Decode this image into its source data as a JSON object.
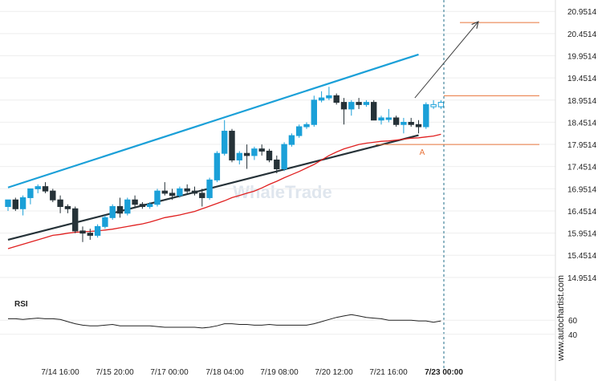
{
  "chart_data": {
    "type": "candlestick",
    "watermark": "WhaleTrade",
    "credit": "www.autochartist.com",
    "y_ticks": [
      "20.9514",
      "20.4514",
      "19.9514",
      "19.4514",
      "18.9514",
      "18.4514",
      "17.9514",
      "17.4514",
      "16.9514",
      "16.4514",
      "15.9514",
      "15.4514",
      "14.9514"
    ],
    "ylim": [
      14.75,
      21.1
    ],
    "x_ticks": [
      "7/14 16:00",
      "7/15 20:00",
      "7/17 00:00",
      "7/18 04:00",
      "7/19 08:00",
      "7/20 12:00",
      "7/21 16:00",
      "7/23 00:00"
    ],
    "candles": [
      [
        16.55,
        16.7,
        16.45,
        16.7
      ],
      [
        16.7,
        16.75,
        16.45,
        16.5
      ],
      [
        16.5,
        16.8,
        16.35,
        16.75
      ],
      [
        16.75,
        16.95,
        16.6,
        16.95
      ],
      [
        16.95,
        17.05,
        16.85,
        17.0
      ],
      [
        17.0,
        17.1,
        16.85,
        16.9
      ],
      [
        16.9,
        16.95,
        16.65,
        16.7
      ],
      [
        16.7,
        16.8,
        16.4,
        16.55
      ],
      [
        16.55,
        16.6,
        16.4,
        16.5
      ],
      [
        16.5,
        16.55,
        15.95,
        16.0
      ],
      [
        16.0,
        16.1,
        15.75,
        15.95
      ],
      [
        15.95,
        16.05,
        15.8,
        15.9
      ],
      [
        15.9,
        16.15,
        15.85,
        16.1
      ],
      [
        16.1,
        16.35,
        16.05,
        16.3
      ],
      [
        16.3,
        16.6,
        16.25,
        16.55
      ],
      [
        16.55,
        16.75,
        16.3,
        16.4
      ],
      [
        16.4,
        16.75,
        16.35,
        16.7
      ],
      [
        16.7,
        16.8,
        16.55,
        16.6
      ],
      [
        16.6,
        16.65,
        16.5,
        16.55
      ],
      [
        16.55,
        16.65,
        16.5,
        16.6
      ],
      [
        16.6,
        16.95,
        16.55,
        16.9
      ],
      [
        16.9,
        17.1,
        16.8,
        16.85
      ],
      [
        16.85,
        16.95,
        16.7,
        16.8
      ],
      [
        16.8,
        17.0,
        16.75,
        16.95
      ],
      [
        16.95,
        17.05,
        16.85,
        16.9
      ],
      [
        16.9,
        17.0,
        16.8,
        16.85
      ],
      [
        16.85,
        16.95,
        16.55,
        16.75
      ],
      [
        16.75,
        17.2,
        16.7,
        17.15
      ],
      [
        17.15,
        17.8,
        17.1,
        17.75
      ],
      [
        17.75,
        18.5,
        17.7,
        18.25
      ],
      [
        18.25,
        18.3,
        17.55,
        17.6
      ],
      [
        17.6,
        17.8,
        17.5,
        17.75
      ],
      [
        17.75,
        17.95,
        17.4,
        17.7
      ],
      [
        17.7,
        17.9,
        17.6,
        17.85
      ],
      [
        17.85,
        17.95,
        17.7,
        17.8
      ],
      [
        17.8,
        17.85,
        17.55,
        17.6
      ],
      [
        17.6,
        17.7,
        17.3,
        17.4
      ],
      [
        17.4,
        18.0,
        17.35,
        17.95
      ],
      [
        17.95,
        18.2,
        17.9,
        18.15
      ],
      [
        18.15,
        18.4,
        18.1,
        18.35
      ],
      [
        18.35,
        18.45,
        18.3,
        18.4
      ],
      [
        18.4,
        19.05,
        18.35,
        18.95
      ],
      [
        18.95,
        19.15,
        18.9,
        19.0
      ],
      [
        19.0,
        19.25,
        18.95,
        19.05
      ],
      [
        19.05,
        19.1,
        18.85,
        18.9
      ],
      [
        18.9,
        19.0,
        18.4,
        18.75
      ],
      [
        18.75,
        18.95,
        18.6,
        18.9
      ],
      [
        18.9,
        19.0,
        18.75,
        18.85
      ],
      [
        18.85,
        18.95,
        18.8,
        18.9
      ],
      [
        18.9,
        18.95,
        18.5,
        18.5
      ],
      [
        18.5,
        18.6,
        18.4,
        18.55
      ],
      [
        18.55,
        18.75,
        18.45,
        18.55
      ],
      [
        18.55,
        18.6,
        18.35,
        18.4
      ],
      [
        18.4,
        18.55,
        18.2,
        18.45
      ],
      [
        18.45,
        18.55,
        18.35,
        18.4
      ],
      [
        18.4,
        18.5,
        18.2,
        18.35
      ],
      [
        18.35,
        18.9,
        18.3,
        18.85
      ],
      [
        18.85,
        18.95,
        18.75,
        18.8
      ],
      [
        18.8,
        18.95,
        18.75,
        18.9
      ]
    ],
    "moving_average": [
      15.6,
      15.65,
      15.7,
      15.75,
      15.8,
      15.85,
      15.9,
      15.92,
      15.95,
      15.97,
      15.98,
      15.99,
      16.0,
      16.02,
      16.04,
      16.07,
      16.1,
      16.13,
      16.16,
      16.2,
      16.25,
      16.3,
      16.33,
      16.36,
      16.4,
      16.44,
      16.5,
      16.56,
      16.62,
      16.68,
      16.75,
      16.8,
      16.85,
      16.9,
      16.97,
      17.05,
      17.12,
      17.2,
      17.27,
      17.34,
      17.42,
      17.5,
      17.6,
      17.7,
      17.78,
      17.85,
      17.9,
      17.95,
      17.98,
      18.0,
      18.02,
      18.03,
      18.05,
      18.07,
      18.09,
      18.1,
      18.12,
      18.14,
      18.18
    ],
    "channel_upper": [
      [
        0,
        16.98
      ],
      [
        55,
        19.98
      ]
    ],
    "channel_lower": [
      [
        0,
        15.8
      ],
      [
        55,
        18.16
      ]
    ],
    "resistance_level": 19.05,
    "support_level": 17.95,
    "target_level": 20.7,
    "projection": [
      [
        54.5,
        19.0
      ],
      [
        63,
        20.72
      ]
    ],
    "point_label": "A",
    "rsi_label": "RSI",
    "rsi_ticks": [
      "60",
      "40"
    ],
    "rsi_values": [
      62,
      62,
      61,
      62,
      63,
      62,
      62,
      61,
      58,
      55,
      53,
      52,
      52,
      53,
      54,
      52,
      52,
      52,
      52,
      52,
      51,
      50,
      50,
      50,
      50,
      50,
      49,
      50,
      52,
      55,
      55,
      54,
      54,
      53,
      53,
      54,
      53,
      53,
      53,
      53,
      53,
      55,
      58,
      61,
      64,
      66,
      68,
      66,
      64,
      63,
      62,
      60,
      60,
      60,
      60,
      59,
      59,
      57,
      59
    ]
  }
}
